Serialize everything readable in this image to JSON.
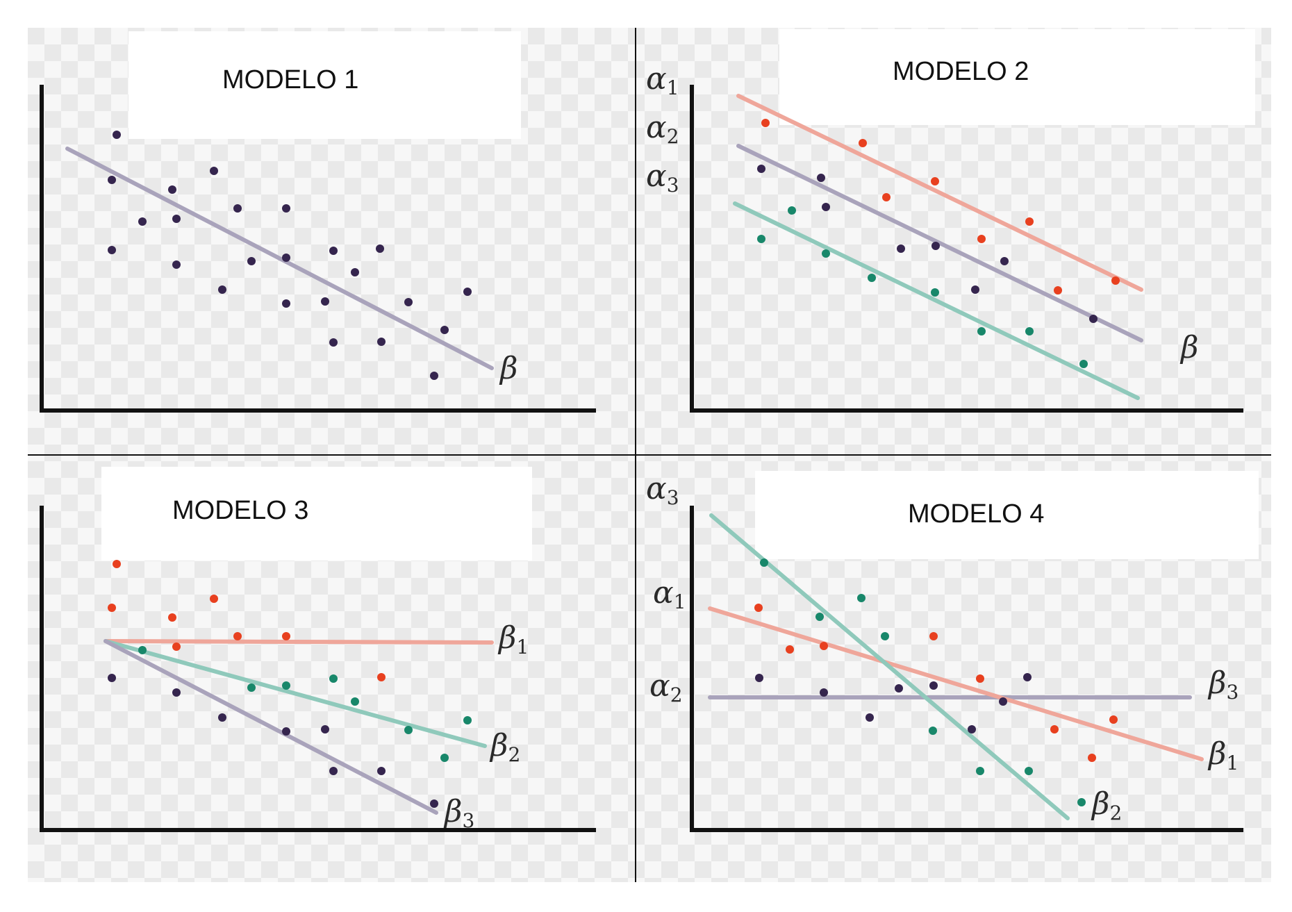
{
  "colors": {
    "purple": "#35254e",
    "red": "#e8401f",
    "teal": "#18876a",
    "line_purple": "#a9a3bb",
    "line_red": "#efa69a",
    "line_teal": "#8fc9bb",
    "axis": "#111111",
    "checker_a": "#f7f7f7",
    "checker_b": "#e9e9e9"
  },
  "panels": [
    {
      "title": "MODELO 1",
      "labels": [
        {
          "sym": "β",
          "sub": ""
        }
      ]
    },
    {
      "title": "MODELO 2",
      "labels": [
        {
          "sym": "α",
          "sub": "1"
        },
        {
          "sym": "α",
          "sub": "2"
        },
        {
          "sym": "α",
          "sub": "3"
        },
        {
          "sym": "β",
          "sub": ""
        }
      ]
    },
    {
      "title": "MODELO 3",
      "labels": [
        {
          "sym": "β",
          "sub": "1"
        },
        {
          "sym": "β",
          "sub": "2"
        },
        {
          "sym": "β",
          "sub": "3"
        }
      ]
    },
    {
      "title": "MODELO 4",
      "labels": [
        {
          "sym": "α",
          "sub": "3"
        },
        {
          "sym": "α",
          "sub": "1"
        },
        {
          "sym": "α",
          "sub": "2"
        },
        {
          "sym": "β",
          "sub": "3"
        },
        {
          "sym": "β",
          "sub": "1"
        },
        {
          "sym": "β",
          "sub": "2"
        }
      ]
    }
  ]
}
